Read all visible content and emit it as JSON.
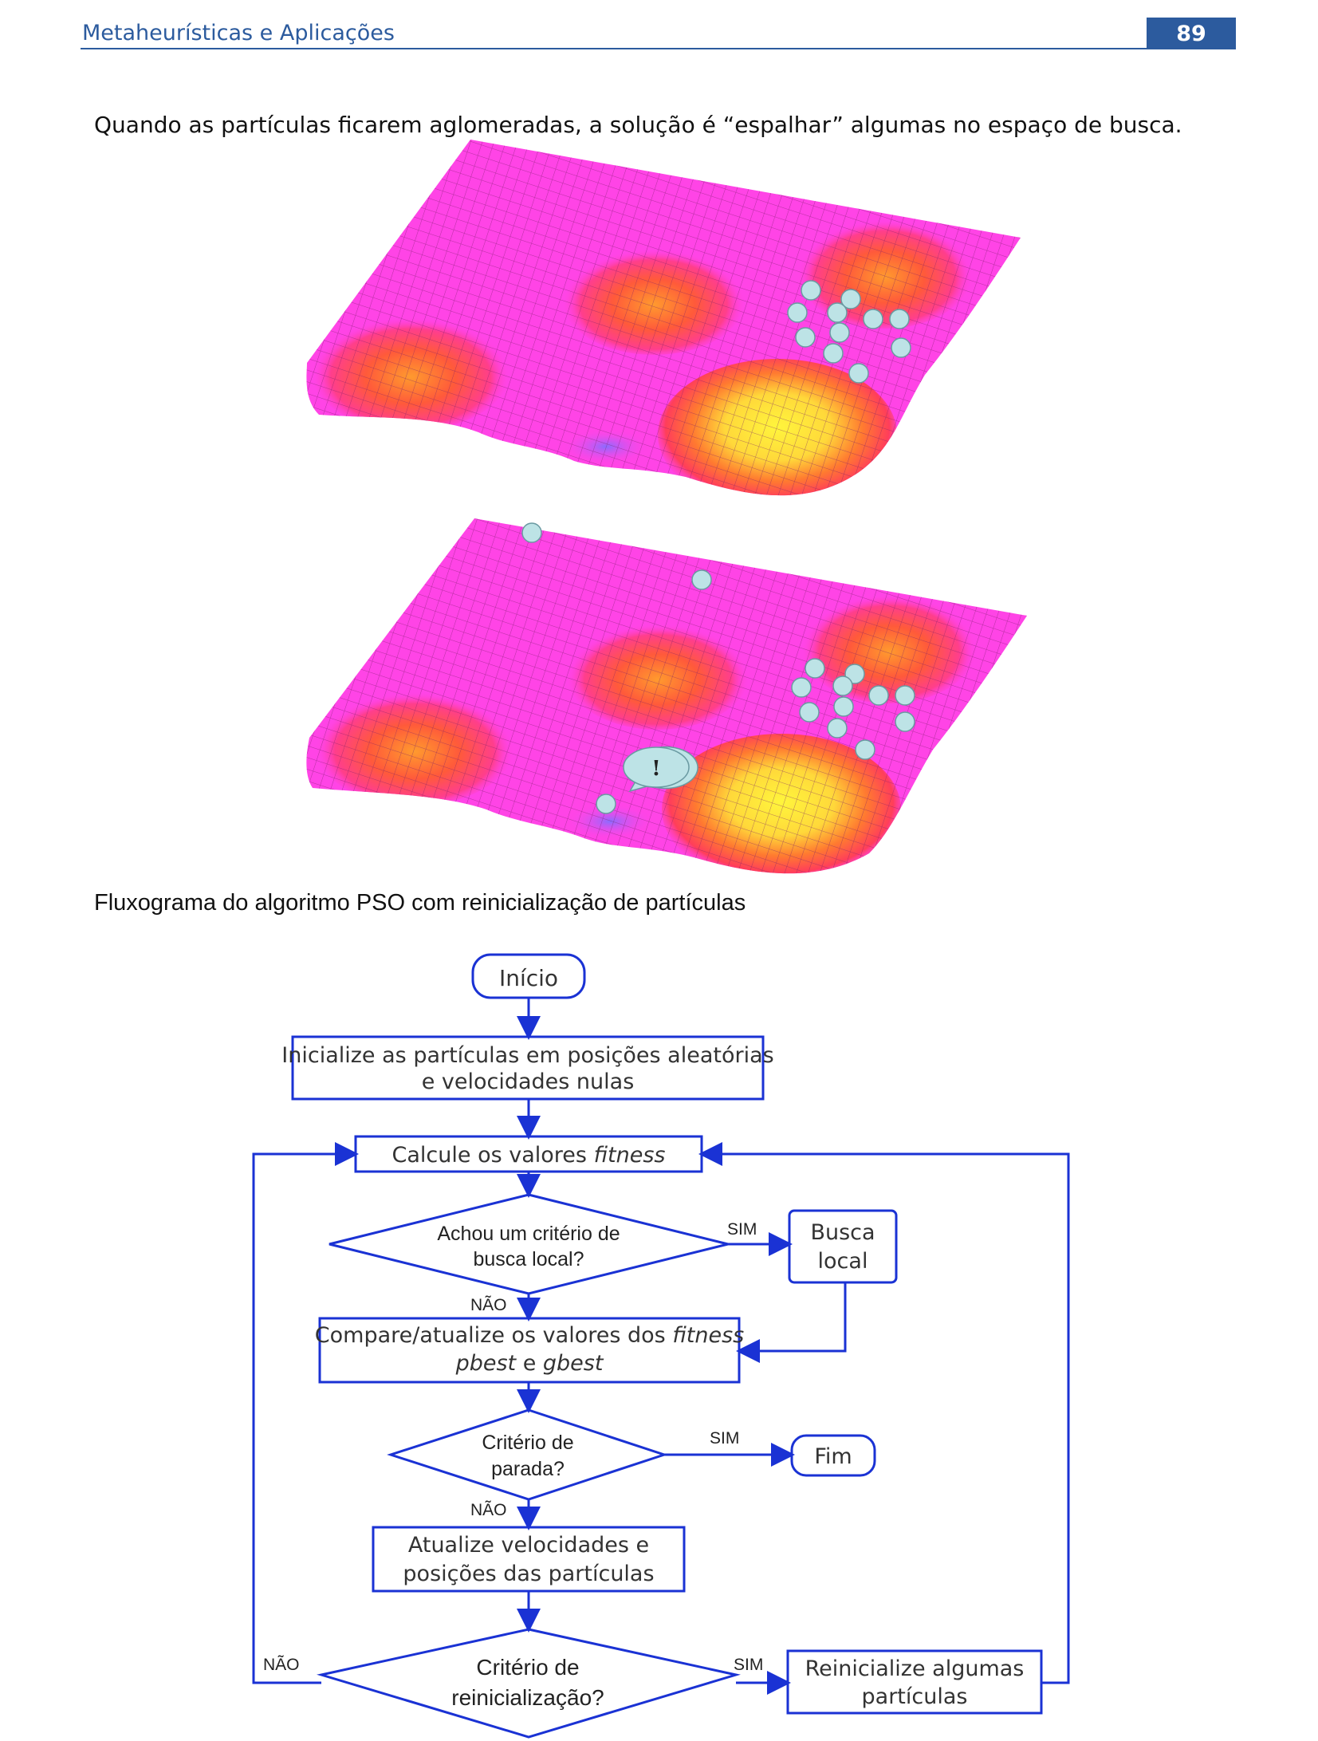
{
  "header": {
    "title": "Metaheurísticas e Aplicações",
    "page_number": "89"
  },
  "intro_text": "Quando as partículas ficarem aglomeradas, a solução é “espalhar” algumas no espaço de busca.",
  "figure": {
    "surface_colors": {
      "valley": "#ff44e6",
      "low": "#ff3e8c",
      "mid": "#ff5a3a",
      "high": "#ff9a2e",
      "peak": "#fff53c",
      "grid": "#7a1d6a"
    },
    "particle_color": "#bde3e6",
    "callout_symbol": "!"
  },
  "section_title": "Fluxograma do algoritmo PSO com reinicialização de partículas",
  "flowchart": {
    "line_color": "#1a32d4",
    "start": "Início",
    "init": {
      "line1": "Inicialize as partículas em posições aleatórias",
      "line2": "e velocidades nulas"
    },
    "fitness": {
      "prefix": "Calcule os valores ",
      "emphasis": "fitness"
    },
    "local_decision": {
      "line1": "Achou um critério de",
      "line2": "busca local?"
    },
    "local_search": {
      "line1": "Busca",
      "line2": "local"
    },
    "compare": {
      "prefix": "Compare/atualize os valores dos ",
      "emphasis": "fitness",
      "line2_a": "pbest",
      "line2_mid": " e ",
      "line2_b": "gbest"
    },
    "stop_decision": {
      "line1": "Critério de",
      "line2": "parada?"
    },
    "end": "Fim",
    "update": {
      "line1": "Atualize velocidades e",
      "line2": "posições das partículas"
    },
    "reinit_decision": {
      "line1": "Critério de",
      "line2": "reinicialização?"
    },
    "reinit": {
      "line1": "Reinicialize algumas",
      "line2": "partículas"
    },
    "yes": "SIM",
    "no": "NÃO"
  }
}
